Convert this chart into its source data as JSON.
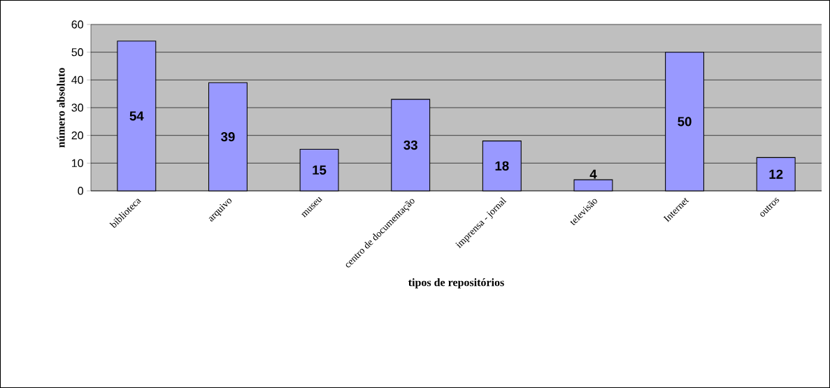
{
  "chart_data": {
    "type": "bar",
    "xlabel": "tipos de repositórios",
    "ylabel": "número absoluto",
    "categories": [
      "biblioteca",
      "arquivo",
      "museu",
      "centro de documentação",
      "imprensa - jornal",
      "televisão",
      "Internet",
      "outros"
    ],
    "values": [
      54,
      39,
      15,
      33,
      18,
      4,
      50,
      12
    ],
    "color": "#9999ff",
    "ylim": [
      0,
      60
    ],
    "yticks": [
      0,
      10,
      20,
      30,
      40,
      50,
      60
    ],
    "grid": "y",
    "data_labels": true
  }
}
